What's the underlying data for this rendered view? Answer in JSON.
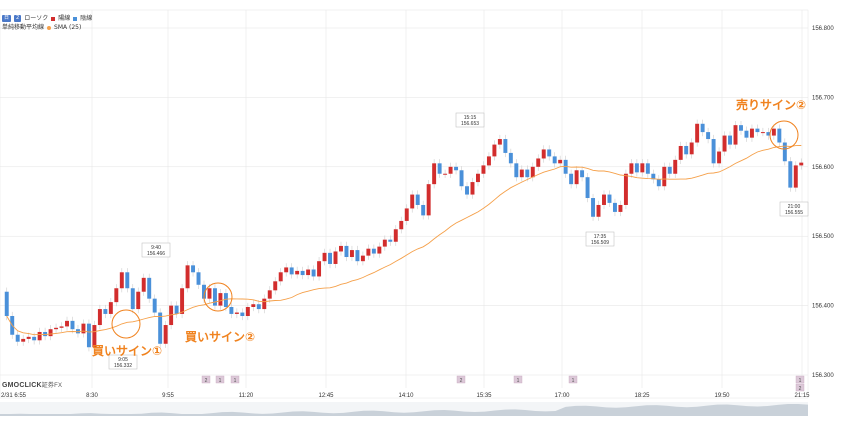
{
  "legend": {
    "pill_1": "日",
    "pill_2": "2",
    "chart_type_label": "ローソク",
    "up_label": "陽線",
    "down_label": "陰線",
    "ma_title": "単純移動平均線",
    "ma_label": "SMA (25)"
  },
  "brand": {
    "name": "GMOCLICK",
    "sub": "証券FX"
  },
  "colors": {
    "up": "#d22d2d",
    "down": "#4a90d9",
    "ma": "#f5a04a",
    "annotation": "#f0821e",
    "grid": "#e3e3e3",
    "axis_text": "#333333"
  },
  "annotations": {
    "buy1": "買いサイン①",
    "buy2": "買いサイン②",
    "sell2": "売りサイン②"
  },
  "chart_data": {
    "type": "candlestick",
    "ylim": [
      156.3,
      156.8
    ],
    "y_ticks": [
      "156.800",
      "156.700",
      "156.600",
      "156.500",
      "156.400",
      "156.300"
    ],
    "x_ticks": [
      "2/31 6:55",
      "8:30",
      "9:55",
      "11:20",
      "12:45",
      "14:10",
      "15:35",
      "17:00",
      "18:25",
      "19:50",
      "21:15"
    ],
    "callouts": [
      {
        "time": "9:40",
        "price": "156.466"
      },
      {
        "time": "9:05",
        "price": "156.332"
      },
      {
        "time": "15:15",
        "price": "156.653"
      },
      {
        "time": "17:35",
        "price": "156.509"
      },
      {
        "time": "21:00",
        "price": "156.555"
      }
    ],
    "event_markers": [
      "2",
      "1",
      "1",
      "2",
      "1",
      "1",
      "1",
      "2"
    ],
    "candles": [
      {
        "o": 156.42,
        "c": 156.385
      },
      {
        "o": 156.385,
        "c": 156.358
      },
      {
        "o": 156.358,
        "c": 156.348
      },
      {
        "o": 156.348,
        "c": 156.352
      },
      {
        "o": 156.352,
        "c": 156.355
      },
      {
        "o": 156.355,
        "c": 156.35
      },
      {
        "o": 156.35,
        "c": 156.362
      },
      {
        "o": 156.362,
        "c": 156.356
      },
      {
        "o": 156.356,
        "c": 156.366
      },
      {
        "o": 156.366,
        "c": 156.368
      },
      {
        "o": 156.368,
        "c": 156.37
      },
      {
        "o": 156.37,
        "c": 156.378
      },
      {
        "o": 156.378,
        "c": 156.366
      },
      {
        "o": 156.366,
        "c": 156.36
      },
      {
        "o": 156.36,
        "c": 156.374
      },
      {
        "o": 156.374,
        "c": 156.34
      },
      {
        "o": 156.34,
        "c": 156.372
      },
      {
        "o": 156.372,
        "c": 156.395
      },
      {
        "o": 156.395,
        "c": 156.388
      },
      {
        "o": 156.388,
        "c": 156.405
      },
      {
        "o": 156.405,
        "c": 156.425
      },
      {
        "o": 156.425,
        "c": 156.448
      },
      {
        "o": 156.448,
        "c": 156.425
      },
      {
        "o": 156.425,
        "c": 156.395
      },
      {
        "o": 156.395,
        "c": 156.42
      },
      {
        "o": 156.42,
        "c": 156.44
      },
      {
        "o": 156.44,
        "c": 156.41
      },
      {
        "o": 156.41,
        "c": 156.39
      },
      {
        "o": 156.39,
        "c": 156.345
      },
      {
        "o": 156.345,
        "c": 156.372
      },
      {
        "o": 156.372,
        "c": 156.4
      },
      {
        "o": 156.4,
        "c": 156.388
      },
      {
        "o": 156.388,
        "c": 156.425
      },
      {
        "o": 156.425,
        "c": 156.458
      },
      {
        "o": 156.458,
        "c": 156.448
      },
      {
        "o": 156.448,
        "c": 156.43
      },
      {
        "o": 156.43,
        "c": 156.41
      },
      {
        "o": 156.41,
        "c": 156.425
      },
      {
        "o": 156.425,
        "c": 156.4
      },
      {
        "o": 156.4,
        "c": 156.418
      },
      {
        "o": 156.418,
        "c": 156.398
      },
      {
        "o": 156.398,
        "c": 156.388
      },
      {
        "o": 156.388,
        "c": 156.39
      },
      {
        "o": 156.39,
        "c": 156.385
      },
      {
        "o": 156.385,
        "c": 156.398
      },
      {
        "o": 156.398,
        "c": 156.402
      },
      {
        "o": 156.402,
        "c": 156.395
      },
      {
        "o": 156.395,
        "c": 156.41
      },
      {
        "o": 156.41,
        "c": 156.422
      },
      {
        "o": 156.422,
        "c": 156.435
      },
      {
        "o": 156.435,
        "c": 156.448
      },
      {
        "o": 156.448,
        "c": 156.455
      },
      {
        "o": 156.455,
        "c": 156.445
      },
      {
        "o": 156.445,
        "c": 156.45
      },
      {
        "o": 156.45,
        "c": 156.444
      },
      {
        "o": 156.444,
        "c": 156.452
      },
      {
        "o": 156.452,
        "c": 156.442
      },
      {
        "o": 156.442,
        "c": 156.464
      },
      {
        "o": 156.464,
        "c": 156.476
      },
      {
        "o": 156.476,
        "c": 156.46
      },
      {
        "o": 156.46,
        "c": 156.478
      },
      {
        "o": 156.478,
        "c": 156.486
      },
      {
        "o": 156.486,
        "c": 156.47
      },
      {
        "o": 156.47,
        "c": 156.48
      },
      {
        "o": 156.48,
        "c": 156.464
      },
      {
        "o": 156.464,
        "c": 156.472
      },
      {
        "o": 156.472,
        "c": 156.482
      },
      {
        "o": 156.482,
        "c": 156.475
      },
      {
        "o": 156.475,
        "c": 156.485
      },
      {
        "o": 156.485,
        "c": 156.495
      },
      {
        "o": 156.495,
        "c": 156.492
      },
      {
        "o": 156.492,
        "c": 156.51
      },
      {
        "o": 156.51,
        "c": 156.522
      },
      {
        "o": 156.522,
        "c": 156.54
      },
      {
        "o": 156.54,
        "c": 156.56
      },
      {
        "o": 156.56,
        "c": 156.545
      },
      {
        "o": 156.545,
        "c": 156.53
      },
      {
        "o": 156.53,
        "c": 156.575
      },
      {
        "o": 156.575,
        "c": 156.605
      },
      {
        "o": 156.605,
        "c": 156.59
      },
      {
        "o": 156.59,
        "c": 156.59
      },
      {
        "o": 156.59,
        "c": 156.6
      },
      {
        "o": 156.6,
        "c": 156.595
      },
      {
        "o": 156.595,
        "c": 156.572
      },
      {
        "o": 156.572,
        "c": 156.56
      },
      {
        "o": 156.56,
        "c": 156.578
      },
      {
        "o": 156.578,
        "c": 156.59
      },
      {
        "o": 156.59,
        "c": 156.602
      },
      {
        "o": 156.602,
        "c": 156.615
      },
      {
        "o": 156.615,
        "c": 156.632
      },
      {
        "o": 156.632,
        "c": 156.64
      },
      {
        "o": 156.64,
        "c": 156.62
      },
      {
        "o": 156.62,
        "c": 156.605
      },
      {
        "o": 156.605,
        "c": 156.585
      },
      {
        "o": 156.585,
        "c": 156.596
      },
      {
        "o": 156.596,
        "c": 156.585
      },
      {
        "o": 156.585,
        "c": 156.6
      },
      {
        "o": 156.6,
        "c": 156.612
      },
      {
        "o": 156.612,
        "c": 156.625
      },
      {
        "o": 156.625,
        "c": 156.615
      },
      {
        "o": 156.615,
        "c": 156.605
      },
      {
        "o": 156.605,
        "c": 156.61
      },
      {
        "o": 156.61,
        "c": 156.59
      },
      {
        "o": 156.59,
        "c": 156.575
      },
      {
        "o": 156.575,
        "c": 156.595
      },
      {
        "o": 156.595,
        "c": 156.585
      },
      {
        "o": 156.585,
        "c": 156.555
      },
      {
        "o": 156.555,
        "c": 156.528
      },
      {
        "o": 156.528,
        "c": 156.545
      },
      {
        "o": 156.545,
        "c": 156.56
      },
      {
        "o": 156.56,
        "c": 156.548
      },
      {
        "o": 156.548,
        "c": 156.535
      },
      {
        "o": 156.535,
        "c": 156.545
      },
      {
        "o": 156.545,
        "c": 156.59
      },
      {
        "o": 156.59,
        "c": 156.605
      },
      {
        "o": 156.605,
        "c": 156.592
      },
      {
        "o": 156.592,
        "c": 156.605
      },
      {
        "o": 156.605,
        "c": 156.59
      },
      {
        "o": 156.59,
        "c": 156.582
      },
      {
        "o": 156.582,
        "c": 156.572
      },
      {
        "o": 156.572,
        "c": 156.6
      },
      {
        "o": 156.6,
        "c": 156.59
      },
      {
        "o": 156.59,
        "c": 156.61
      },
      {
        "o": 156.61,
        "c": 156.63
      },
      {
        "o": 156.63,
        "c": 156.618
      },
      {
        "o": 156.618,
        "c": 156.635
      },
      {
        "o": 156.635,
        "c": 156.662
      },
      {
        "o": 156.662,
        "c": 156.65
      },
      {
        "o": 156.65,
        "c": 156.64
      },
      {
        "o": 156.64,
        "c": 156.605
      },
      {
        "o": 156.605,
        "c": 156.622
      },
      {
        "o": 156.622,
        "c": 156.645
      },
      {
        "o": 156.645,
        "c": 156.632
      },
      {
        "o": 156.632,
        "c": 156.66
      },
      {
        "o": 156.66,
        "c": 156.652
      },
      {
        "o": 156.652,
        "c": 156.642
      },
      {
        "o": 156.642,
        "c": 156.655
      },
      {
        "o": 156.655,
        "c": 156.65
      },
      {
        "o": 156.65,
        "c": 156.65
      },
      {
        "o": 156.65,
        "c": 156.645
      },
      {
        "o": 156.645,
        "c": 156.655
      },
      {
        "o": 156.655,
        "c": 156.635
      },
      {
        "o": 156.635,
        "c": 156.608
      },
      {
        "o": 156.608,
        "c": 156.57
      },
      {
        "o": 156.57,
        "c": 156.602
      },
      {
        "o": 156.602,
        "c": 156.606
      }
    ]
  }
}
